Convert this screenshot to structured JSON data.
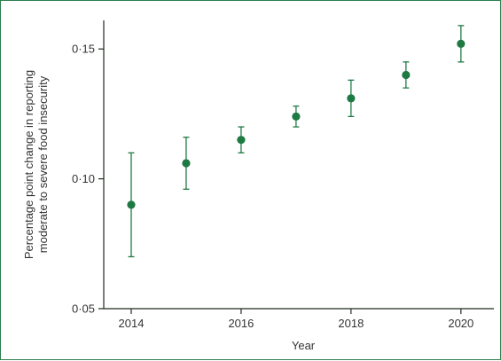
{
  "chart_data": {
    "type": "scatter",
    "title": "",
    "xlabel": "Year",
    "ylabel_lines": [
      "Percentage point change in reporting",
      "moderate to severe food insecurity"
    ],
    "x_ticks": [
      2014,
      2016,
      2018,
      2020
    ],
    "y_ticks": [
      {
        "value": 0.05,
        "label": "0·05"
      },
      {
        "value": 0.1,
        "label": "0·10"
      },
      {
        "value": 0.15,
        "label": "0·15"
      }
    ],
    "xlim": [
      2013.5,
      2020.6
    ],
    "ylim": [
      0.05,
      0.161
    ],
    "grid": false,
    "series": [
      {
        "points": [
          {
            "x": 2014,
            "y": 0.09,
            "lower": 0.07,
            "upper": 0.11
          },
          {
            "x": 2015,
            "y": 0.106,
            "lower": 0.096,
            "upper": 0.116
          },
          {
            "x": 2016,
            "y": 0.115,
            "lower": 0.11,
            "upper": 0.12
          },
          {
            "x": 2017,
            "y": 0.124,
            "lower": 0.12,
            "upper": 0.128
          },
          {
            "x": 2018,
            "y": 0.131,
            "lower": 0.124,
            "upper": 0.138
          },
          {
            "x": 2019,
            "y": 0.14,
            "lower": 0.135,
            "upper": 0.145
          },
          {
            "x": 2020,
            "y": 0.152,
            "lower": 0.145,
            "upper": 0.159
          }
        ]
      }
    ],
    "colors": {
      "marker": "#1e7a43",
      "errorbar": "#1e7a43",
      "axis": "#1f2a1f",
      "frame": "#2e7d4f"
    }
  }
}
